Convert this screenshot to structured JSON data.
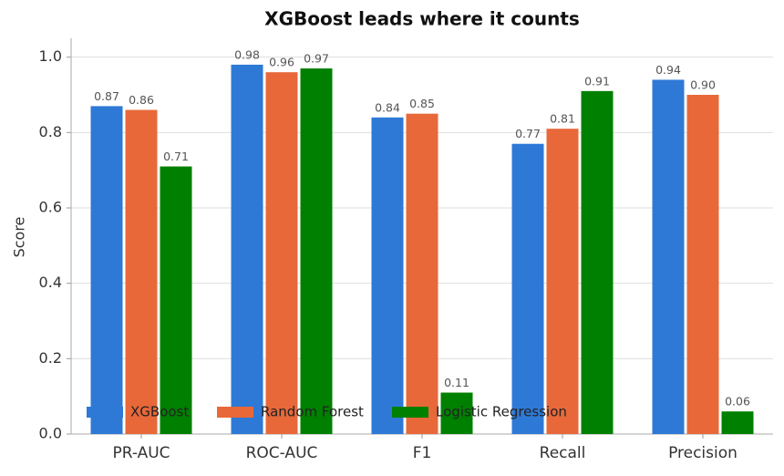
{
  "chart_data": {
    "type": "bar",
    "title": "XGBoost leads where it counts",
    "y_label": "Score",
    "categories": [
      "PR-AUC",
      "ROC-AUC",
      "F1",
      "Recall",
      "Precision"
    ],
    "series": [
      {
        "name": "XGBoost",
        "color": "#2e79d6",
        "values": [
          0.87,
          0.98,
          0.84,
          0.77,
          0.94
        ],
        "value_labels": [
          "0.87",
          "0.98",
          "0.84",
          "0.77",
          "0.94"
        ]
      },
      {
        "name": "Random Forest",
        "color": "#e8683a",
        "values": [
          0.86,
          0.96,
          0.85,
          0.81,
          0.9
        ],
        "value_labels": [
          "0.86",
          "0.96",
          "0.85",
          "0.81",
          "0.90"
        ]
      },
      {
        "name": "Logistic Regression",
        "color": "#008000",
        "values": [
          0.71,
          0.97,
          0.11,
          0.91,
          0.06
        ],
        "value_labels": [
          "0.71",
          "0.97",
          "0.11",
          "0.91",
          "0.06"
        ]
      }
    ],
    "ylim": [
      0,
      1.05
    ],
    "yticks": [
      {
        "value": 0,
        "label": "0.0"
      },
      0.2,
      0.4,
      0.6,
      0.8,
      {
        "value": 1,
        "label": "1.0"
      }
    ],
    "grid": true,
    "legend": "lower left"
  }
}
